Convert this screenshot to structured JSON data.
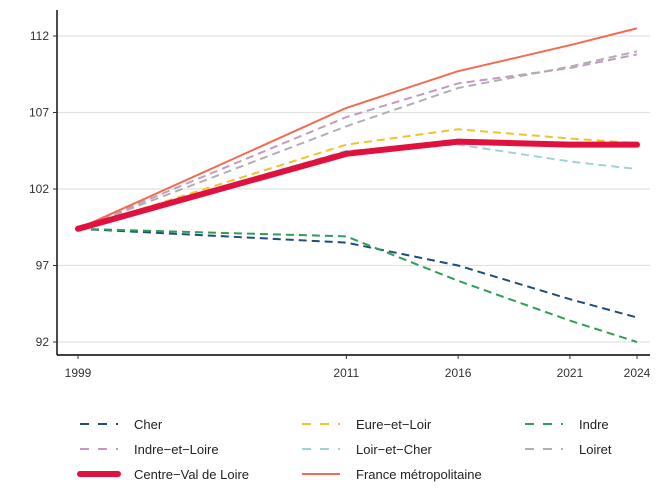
{
  "chart_data": {
    "type": "line",
    "x": [
      1999,
      2011,
      2016,
      2021,
      2024
    ],
    "x_ticks": [
      "1999",
      "2011",
      "2016",
      "2021",
      "2024"
    ],
    "y_ticks": [
      "92",
      "97",
      "102",
      "107",
      "112"
    ],
    "y_tick_values": [
      92,
      97,
      102,
      107,
      112
    ],
    "xlim": [
      1999,
      2024
    ],
    "ylim": [
      91,
      113.9
    ],
    "grid": "horizontal",
    "legend_position": "bottom",
    "series": [
      {
        "name": "Cher",
        "values": [
          99.4,
          98.5,
          97.0,
          94.8,
          93.6
        ],
        "color": "#1f4e79",
        "style": "dashed"
      },
      {
        "name": "Eure−et−Loir",
        "values": [
          99.4,
          104.9,
          105.9,
          105.3,
          105.0
        ],
        "color": "#f2c12e",
        "style": "dashed"
      },
      {
        "name": "Indre",
        "values": [
          99.4,
          98.9,
          96.0,
          93.4,
          92.0
        ],
        "color": "#2e9e59",
        "style": "dashed"
      },
      {
        "name": "Indre−et−Loire",
        "values": [
          99.4,
          106.7,
          108.9,
          109.9,
          110.8
        ],
        "color": "#c39bc1",
        "style": "dashed"
      },
      {
        "name": "Loir−et−Cher",
        "values": [
          99.4,
          104.5,
          104.9,
          103.8,
          103.3
        ],
        "color": "#9fd4d4",
        "style": "dashed"
      },
      {
        "name": "Loiret",
        "values": [
          99.4,
          106.1,
          108.6,
          110.0,
          111.0
        ],
        "color": "#b0b0b0",
        "style": "dashed"
      },
      {
        "name": "Centre−Val de Loire",
        "values": [
          99.4,
          104.3,
          105.1,
          104.9,
          104.9
        ],
        "color": "#e0103f",
        "style": "thick"
      },
      {
        "name": "France métropolitaine",
        "values": [
          99.4,
          107.3,
          109.7,
          111.4,
          112.5
        ],
        "color": "#f26b4f",
        "style": "solid"
      }
    ]
  }
}
